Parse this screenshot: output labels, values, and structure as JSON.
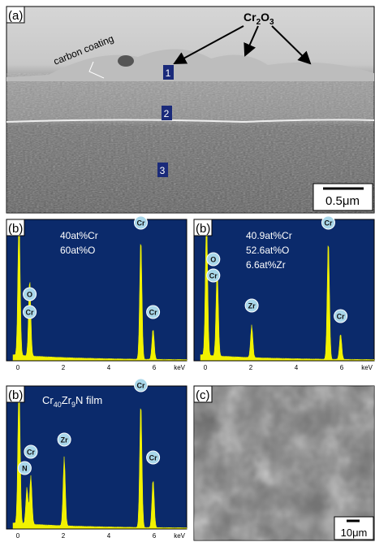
{
  "panel_a": {
    "label": "(a)",
    "formula": [
      "Cr",
      "2",
      "O",
      "3"
    ],
    "annotation": "carbon coating",
    "points": [
      "1",
      "2",
      "3"
    ],
    "scale_bar": "0.5μm"
  },
  "spectra": [
    {
      "label": "(b)",
      "composition": [
        "40at%Cr",
        "60at%O"
      ],
      "peaks": [
        "Cr",
        "O",
        "Cr",
        "Cr"
      ],
      "x_ticks": [
        "0",
        "2",
        "4",
        "6"
      ],
      "x_unit": "keV"
    },
    {
      "label": "(b)",
      "composition": [
        "40.9at%Cr",
        "52.6at%O",
        "6.6at%Zr"
      ],
      "peaks": [
        "O",
        "Cr",
        "Zr",
        "Cr",
        "Cr"
      ],
      "x_ticks": [
        "0",
        "2",
        "4",
        "6"
      ],
      "x_unit": "keV"
    },
    {
      "label": "(b)",
      "composition": [
        "Cr",
        "40",
        "Zr",
        "9",
        "N film"
      ],
      "peaks": [
        "Cr",
        "N",
        "Zr",
        "Cr",
        "Cr"
      ],
      "x_ticks": [
        "0",
        "2",
        "4",
        "6"
      ],
      "x_unit": "keV"
    }
  ],
  "panel_c": {
    "label": "(c)",
    "scale_bar": "10μm"
  }
}
